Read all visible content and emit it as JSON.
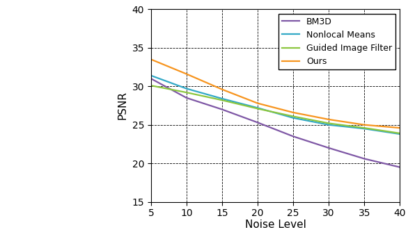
{
  "chart_data": {
    "type": "line",
    "x_label": "Noise Level",
    "y_label": "PSNR",
    "x": [
      5,
      10,
      15,
      20,
      25,
      30,
      35,
      40
    ],
    "series": [
      {
        "name": "BM3D",
        "color": "#7e57a5",
        "values": [
          31.0,
          28.5,
          27.0,
          25.3,
          23.5,
          22.0,
          20.6,
          19.5
        ]
      },
      {
        "name": "Nonlocal Means",
        "color": "#31a8c6",
        "values": [
          31.4,
          29.7,
          28.4,
          27.2,
          25.9,
          25.0,
          24.5,
          23.8
        ]
      },
      {
        "name": "Guided Image Filter",
        "color": "#8cc63f",
        "values": [
          30.1,
          29.2,
          28.2,
          27.1,
          26.1,
          25.2,
          24.6,
          23.9
        ]
      },
      {
        "name": "Ours",
        "color": "#f7941d",
        "values": [
          33.5,
          31.6,
          29.6,
          27.8,
          26.6,
          25.7,
          25.0,
          24.6
        ]
      }
    ],
    "xlim": [
      5,
      40
    ],
    "ylim": [
      15,
      40
    ],
    "xticks": [
      5,
      10,
      15,
      20,
      25,
      30,
      35,
      40
    ],
    "yticks": [
      15,
      20,
      25,
      30,
      35,
      40
    ],
    "grid": true,
    "legend": "upper right"
  }
}
